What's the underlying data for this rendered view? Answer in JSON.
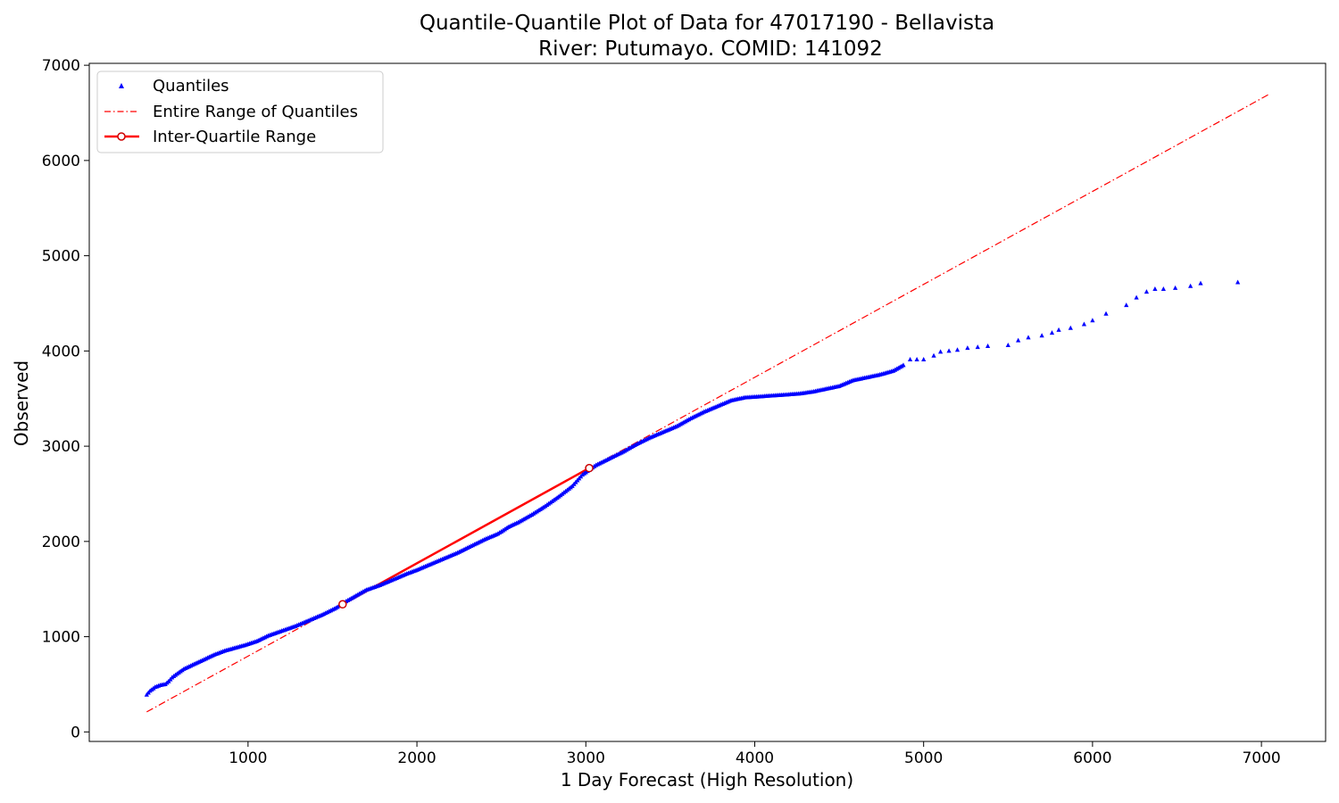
{
  "chart_data": {
    "type": "scatter",
    "title": "Quantile-Quantile Plot of Data for 47017190 - Bellavista",
    "subtitle": "River: Putumayo. COMID: 141092",
    "xlabel": "1 Day Forecast (High Resolution)",
    "ylabel": "Observed",
    "xlim": [
      60,
      7380
    ],
    "ylim": [
      -100,
      7020
    ],
    "xticks": [
      1000,
      2000,
      3000,
      4000,
      5000,
      6000,
      7000
    ],
    "yticks": [
      0,
      1000,
      2000,
      3000,
      4000,
      5000,
      6000,
      7000
    ],
    "xtick_labels": [
      "1000",
      "2000",
      "3000",
      "4000",
      "5000",
      "6000",
      "7000"
    ],
    "ytick_labels": [
      "0",
      "1000",
      "2000",
      "3000",
      "4000",
      "5000",
      "6000",
      "7000"
    ],
    "grid": false,
    "legend_position": "upper-left",
    "series": [
      {
        "name": "Quantiles",
        "style": "markers",
        "marker": "triangle",
        "color": "#0000ff",
        "x": [
          400,
          420,
          450,
          480,
          510,
          530,
          550,
          580,
          620,
          680,
          740,
          800,
          860,
          920,
          980,
          1050,
          1120,
          1200,
          1280,
          1360,
          1440,
          1520,
          1580,
          1640,
          1700,
          1780,
          1860,
          1940,
          2000,
          2080,
          2160,
          2240,
          2320,
          2400,
          2480,
          2540,
          2600,
          2680,
          2760,
          2840,
          2920,
          2980,
          3060,
          3140,
          3220,
          3300,
          3380,
          3460,
          3540,
          3620,
          3700,
          3780,
          3860,
          3940,
          4020,
          4100,
          4180,
          4260,
          4340,
          4420,
          4500,
          4580,
          4660,
          4740,
          4820,
          4880,
          4920,
          4960,
          5000,
          5060,
          5100,
          5150,
          5200,
          5260,
          5320,
          5380,
          5500,
          5560,
          5620,
          5700,
          5760,
          5800,
          5870,
          5950,
          6000,
          6080,
          6200,
          6260,
          6320,
          6370,
          6420,
          6490,
          6580,
          6640,
          6860
        ],
        "y": [
          390,
          430,
          470,
          490,
          500,
          530,
          570,
          610,
          660,
          710,
          760,
          810,
          850,
          880,
          910,
          950,
          1010,
          1060,
          1110,
          1170,
          1230,
          1300,
          1370,
          1430,
          1490,
          1540,
          1600,
          1660,
          1700,
          1760,
          1820,
          1880,
          1950,
          2020,
          2080,
          2150,
          2200,
          2280,
          2370,
          2470,
          2580,
          2700,
          2800,
          2870,
          2940,
          3020,
          3090,
          3150,
          3210,
          3290,
          3360,
          3420,
          3480,
          3510,
          3520,
          3530,
          3540,
          3550,
          3570,
          3600,
          3630,
          3690,
          3720,
          3750,
          3790,
          3850,
          3910,
          3910,
          3910,
          3950,
          3990,
          4000,
          4010,
          4030,
          4040,
          4050,
          4060,
          4110,
          4140,
          4160,
          4190,
          4220,
          4240,
          4280,
          4320,
          4390,
          4480,
          4560,
          4620,
          4650,
          4650,
          4660,
          4680,
          4710,
          4720
        ]
      },
      {
        "name": "Entire Range of Quantiles",
        "style": "dashdot",
        "color": "#ff0000",
        "x": [
          400,
          7050
        ],
        "y": [
          210,
          6700
        ]
      },
      {
        "name": "Inter-Quartile Range",
        "style": "line-with-markers",
        "color": "#ff0000",
        "x": [
          1560,
          3020
        ],
        "y": [
          1340,
          2770
        ]
      }
    ]
  }
}
